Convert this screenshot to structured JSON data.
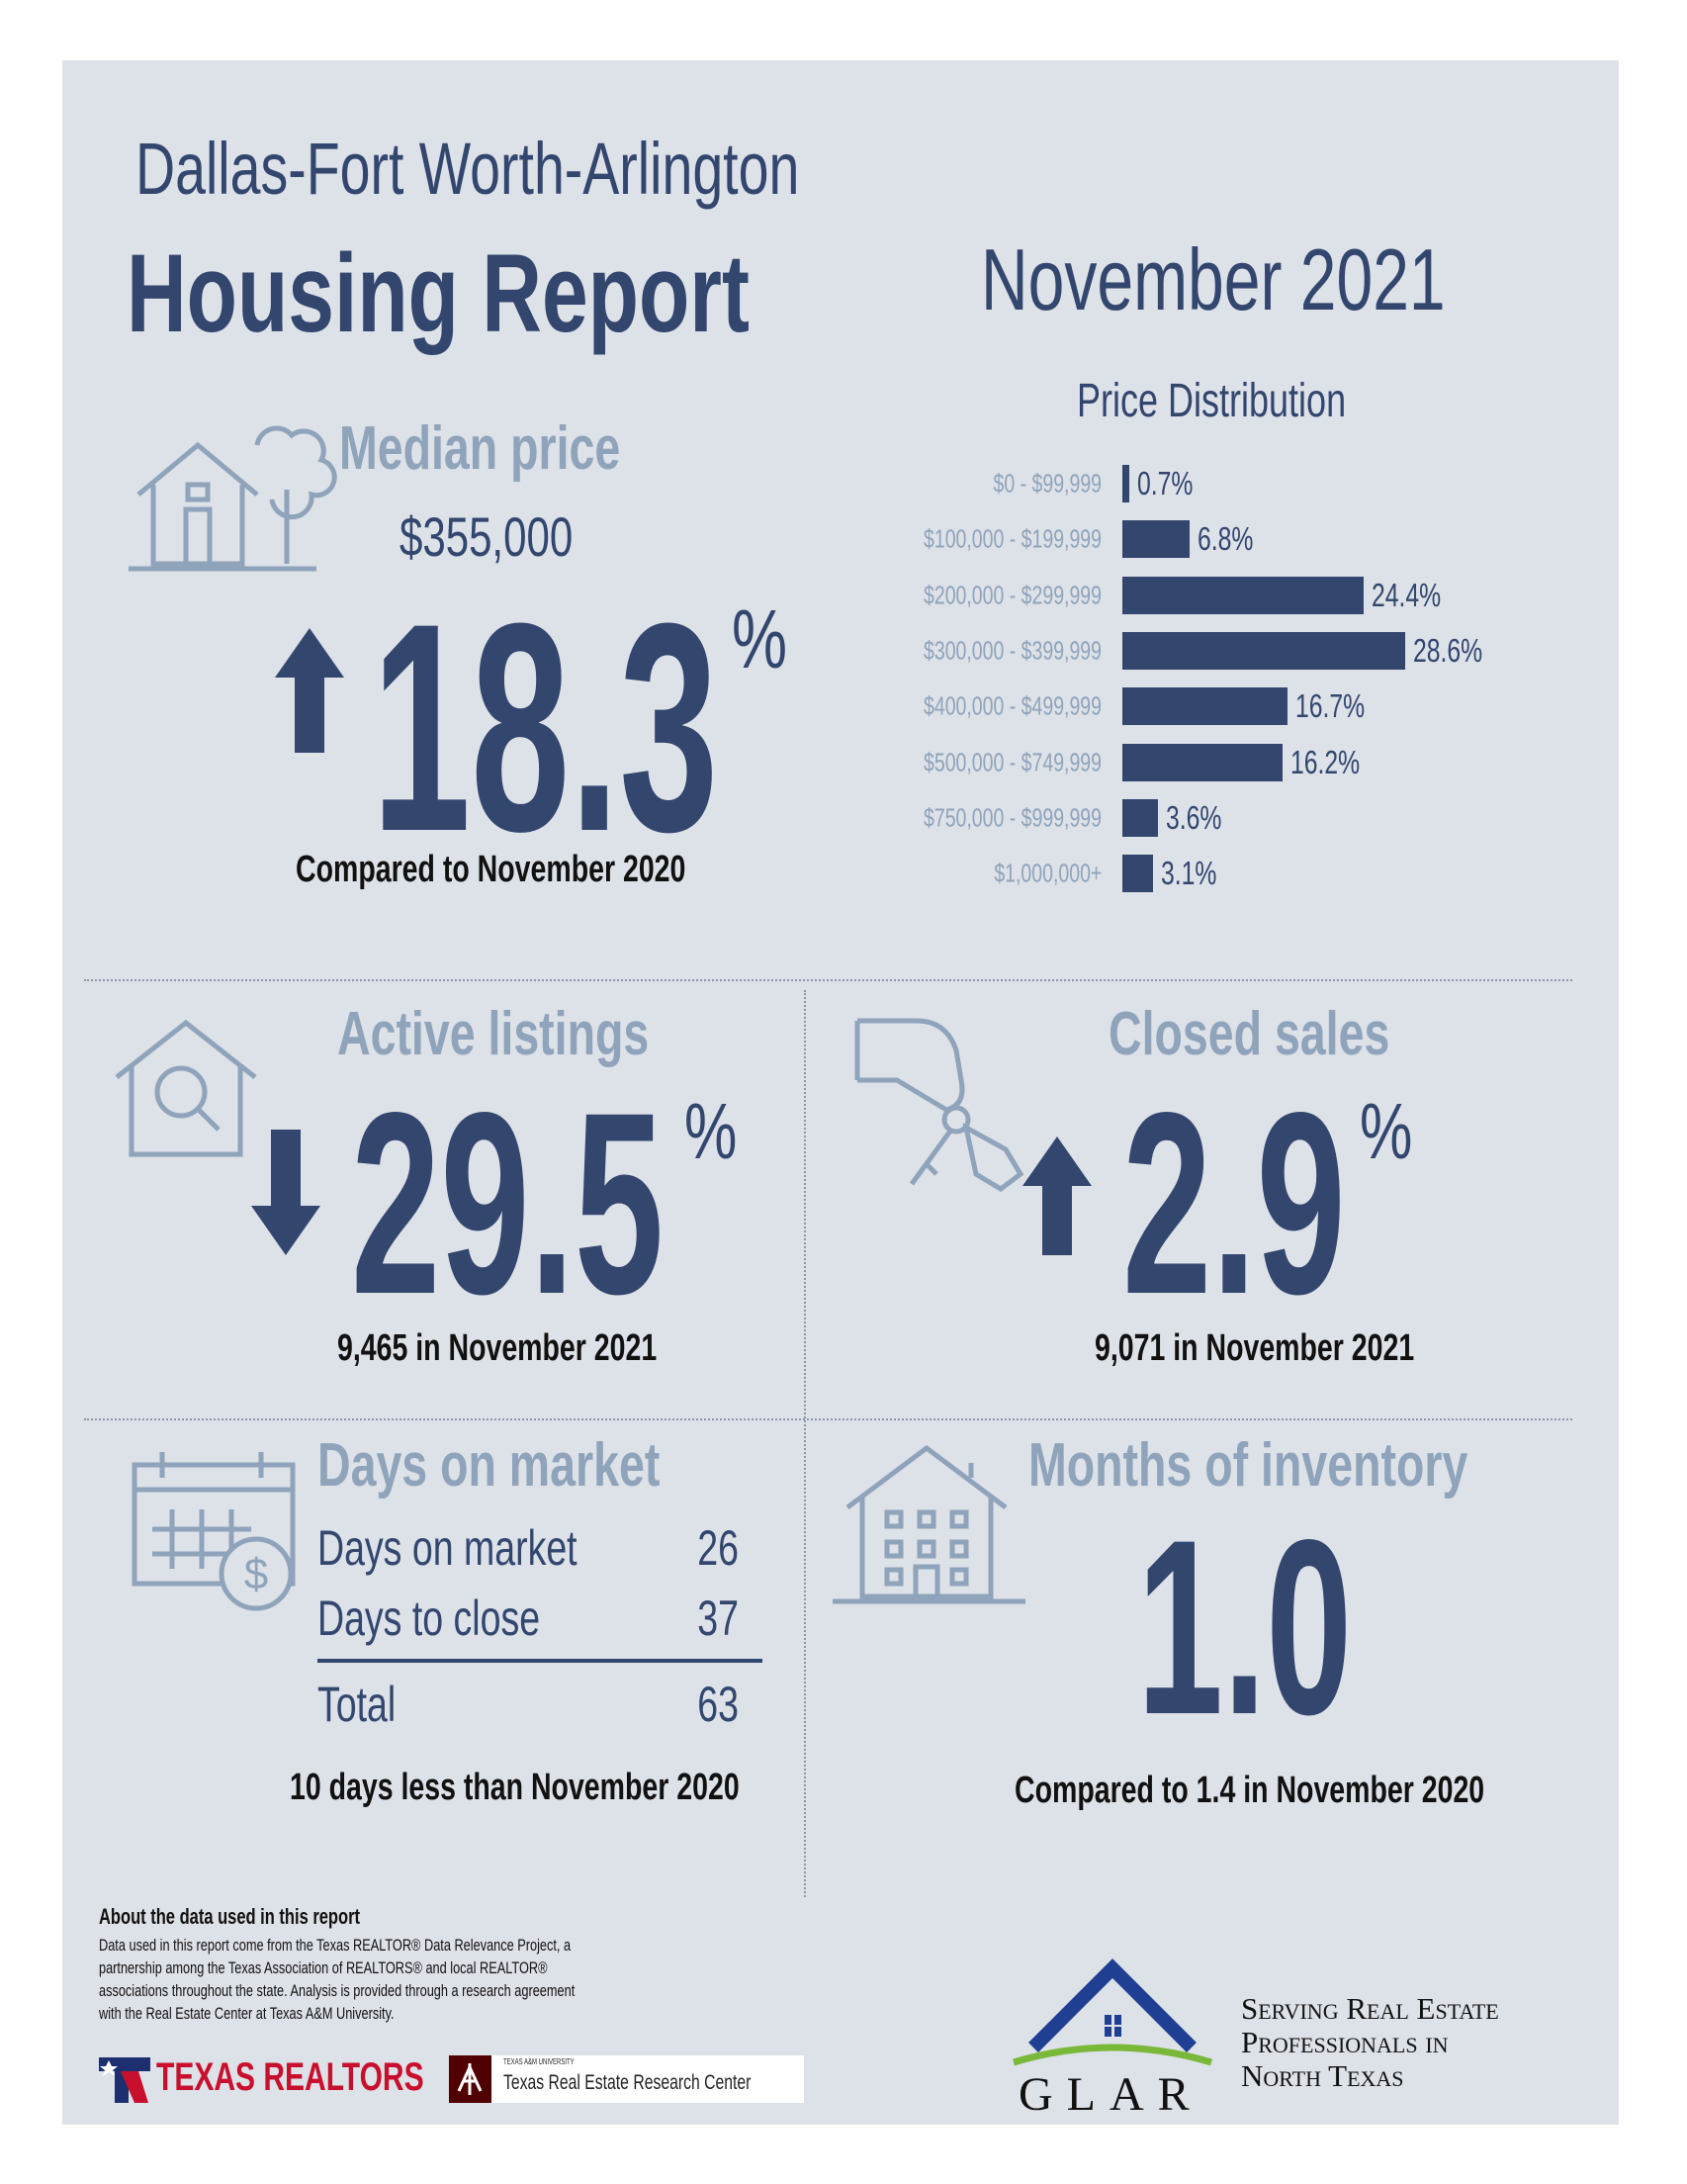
{
  "header": {
    "region": "Dallas-Fort Worth-Arlington",
    "title": "Housing Report",
    "period": "November 2021"
  },
  "median_price": {
    "label": "Median price",
    "value": "$355,000",
    "change": "18.3",
    "unit": "%",
    "direction": "up",
    "comparison": "Compared to November 2020"
  },
  "chart_data": {
    "type": "bar",
    "orientation": "horizontal",
    "title": "Price Distribution",
    "categories": [
      "$0 - $99,999",
      "$100,000 - $199,999",
      "$200,000 - $299,999",
      "$300,000 - $399,999",
      "$400,000 - $499,999",
      "$500,000 - $749,999",
      "$750,000 - $999,999",
      "$1,000,000+"
    ],
    "values": [
      0.7,
      6.8,
      24.4,
      28.6,
      16.7,
      16.2,
      3.6,
      3.1
    ],
    "labels": [
      "0.7%",
      "6.8%",
      "24.4%",
      "28.6%",
      "16.7%",
      "16.2%",
      "3.6%",
      "3.1%"
    ],
    "unit": "%",
    "bar_color": "#33466e",
    "label_color": "#8fa3ba"
  },
  "active_listings": {
    "label": "Active listings",
    "change": "29.5",
    "unit": "%",
    "direction": "down",
    "detail": "9,465 in November 2021"
  },
  "closed_sales": {
    "label": "Closed sales",
    "change": "2.9",
    "unit": "%",
    "direction": "up",
    "detail": "9,071 in November 2021"
  },
  "days_on_market": {
    "label": "Days on market",
    "rows": [
      {
        "label": "Days on market",
        "value": "26"
      },
      {
        "label": "Days to close",
        "value": "37"
      }
    ],
    "total": {
      "label": "Total",
      "value": "63"
    },
    "comparison": "10 days less than November 2020"
  },
  "months_inventory": {
    "label": "Months of inventory",
    "value": "1.0",
    "comparison": "Compared to 1.4 in November 2020"
  },
  "footer": {
    "about_title": "About the data used in this report",
    "about_lines": [
      "Data used in this report come from the Texas REALTOR® Data Relevance Project, a",
      "partnership among the Texas Association of REALTORS® and local REALTOR®",
      "associations throughout the state. Analysis is provided through a research agreement",
      "with the Real Estate Center at Texas A&M University."
    ],
    "logo_texas_realtors": "TEXAS REALTORS",
    "logo_tamu_small": "TEXAS A&M UNIVERSITY",
    "logo_tamu": "Texas Real Estate Research Center",
    "logo_glar": "GLAR",
    "glar_tagline": [
      "Serving Real Estate",
      "Professionals in",
      "North Texas"
    ]
  },
  "colors": {
    "navy": "#33466e",
    "light": "#8fa3ba",
    "background": "#dde1e8",
    "realtors_red": "#c8102e",
    "tamu_maroon": "#500000",
    "glar_blue": "#1f3f93",
    "glar_green": "#7ab83a"
  }
}
